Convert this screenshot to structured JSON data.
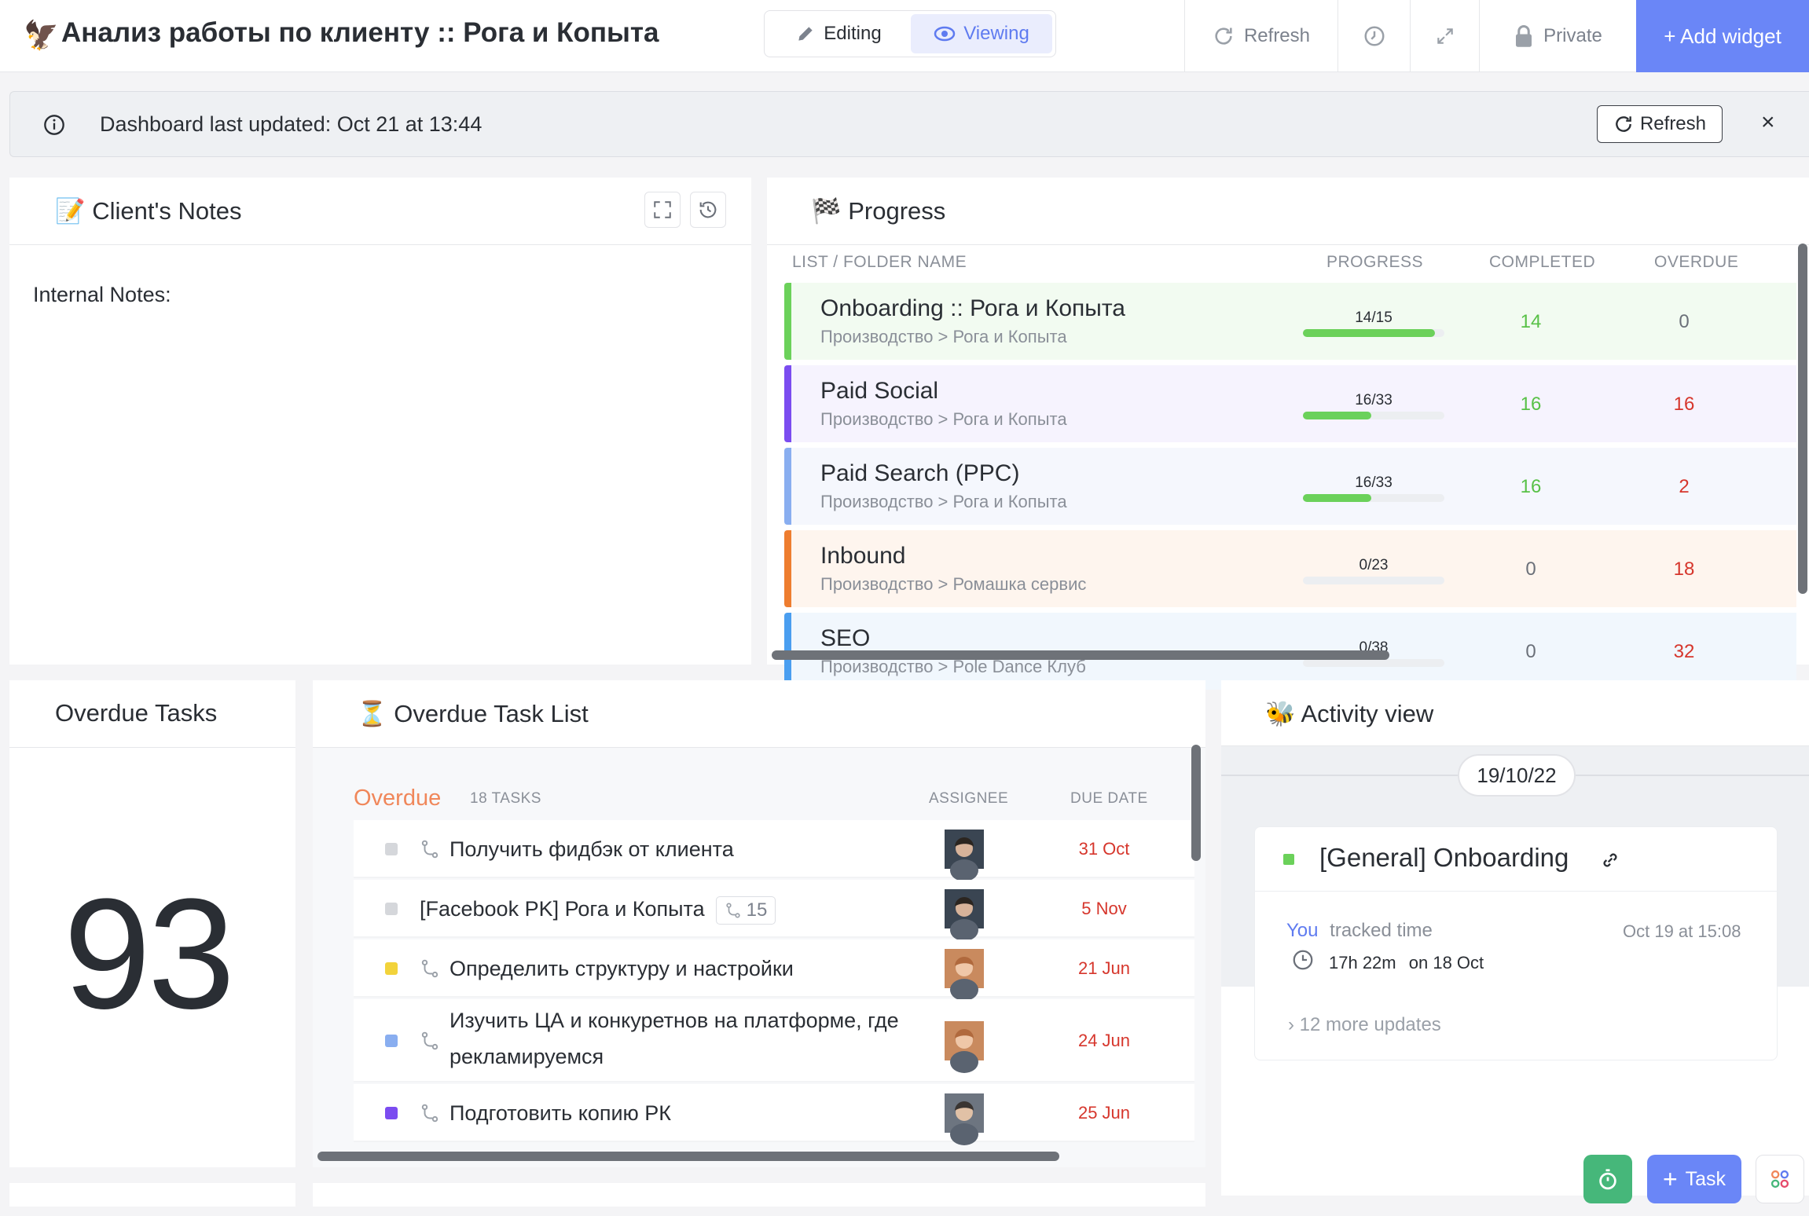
{
  "header": {
    "title": "Анализ работы по клиенту :: Рога и Копыта",
    "mode_editing": "Editing",
    "mode_viewing": "Viewing",
    "refresh": "Refresh",
    "private": "Private",
    "add_widget": "+ Add widget"
  },
  "banner": {
    "text": "Dashboard last updated: Oct 21 at 13:44",
    "refresh": "Refresh",
    "close": "×"
  },
  "notes": {
    "title": "📝 Client's Notes",
    "body": "Internal Notes:"
  },
  "progress": {
    "title": "🏁 Progress",
    "headers": {
      "name": "LIST / FOLDER NAME",
      "progress": "PROGRESS",
      "completed": "COMPLETED",
      "overdue": "OVERDUE"
    },
    "rows": [
      {
        "name": "Onboarding :: Рога и Копыта",
        "path": "Производство > Рога и Копыта",
        "fraction": "14/15",
        "done": 14,
        "total": 15,
        "completed": "14",
        "overdue": "0",
        "color": "#6bd15a",
        "bg": "#f2fbf1",
        "overdue_color": "#6b7079",
        "completed_color": "#58c147"
      },
      {
        "name": "Paid Social",
        "path": "Производство > Рога и Копыта",
        "fraction": "16/33",
        "done": 16,
        "total": 33,
        "completed": "16",
        "overdue": "16",
        "color": "#7b4cf0",
        "bg": "#f6f3fe",
        "overdue_color": "#d6362c",
        "completed_color": "#58c147"
      },
      {
        "name": "Paid Search (PPC)",
        "path": "Производство > Рога и Копыта",
        "fraction": "16/33",
        "done": 16,
        "total": 33,
        "completed": "16",
        "overdue": "2",
        "color": "#89aef0",
        "bg": "#f5f7fd",
        "overdue_color": "#d6362c",
        "completed_color": "#58c147"
      },
      {
        "name": "Inbound",
        "path": "Производство > Ромашка сервис",
        "fraction": "0/23",
        "done": 0,
        "total": 23,
        "completed": "0",
        "overdue": "18",
        "color": "#ee7d2f",
        "bg": "#fef5ee",
        "overdue_color": "#d6362c",
        "completed_color": "#6b7079"
      },
      {
        "name": "SEO",
        "path": "Производство > Pole Dance Клуб",
        "fraction": "0/38",
        "done": 0,
        "total": 38,
        "completed": "0",
        "overdue": "32",
        "color": "#4a9ef0",
        "bg": "#f1f7fd",
        "overdue_color": "#d6362c",
        "completed_color": "#6b7079"
      }
    ]
  },
  "overdue_tasks": {
    "title": "Overdue Tasks",
    "count": "93"
  },
  "task_list": {
    "title": "⏳ Overdue Task List",
    "section": "Overdue",
    "count": "18 TASKS",
    "header_assignee": "ASSIGNEE",
    "header_due": "DUE DATE",
    "tasks": [
      {
        "name": "Получить фидбэк от клиента",
        "due": "31 Oct",
        "status_color": "#d5d7db"
      },
      {
        "name": "[Facebook PK] Рога и Копыта",
        "subtasks": "15",
        "due": "5 Nov",
        "status_color": "#d5d7db"
      },
      {
        "name": "Определить структуру и настройки",
        "due": "21 Jun",
        "status_color": "#f2d33b"
      },
      {
        "name": "Изучить ЦА и конкуретнов на платформе, где рекламируемся",
        "due": "24 Jun",
        "status_color": "#89aef0"
      },
      {
        "name": "Подготовить копию РК",
        "due": "25 Jun",
        "status_color": "#7b4cf0"
      }
    ]
  },
  "activity": {
    "title": "🐝 Activity view",
    "date": "19/10/22",
    "card_title": "[General] Onboarding",
    "actor": "You",
    "action": "tracked time",
    "timestamp": "Oct 19 at 15:08",
    "duration": "17h 22m",
    "on_date": "on 18 Oct",
    "more": "12 more updates"
  },
  "fab": {
    "task": "Task"
  }
}
